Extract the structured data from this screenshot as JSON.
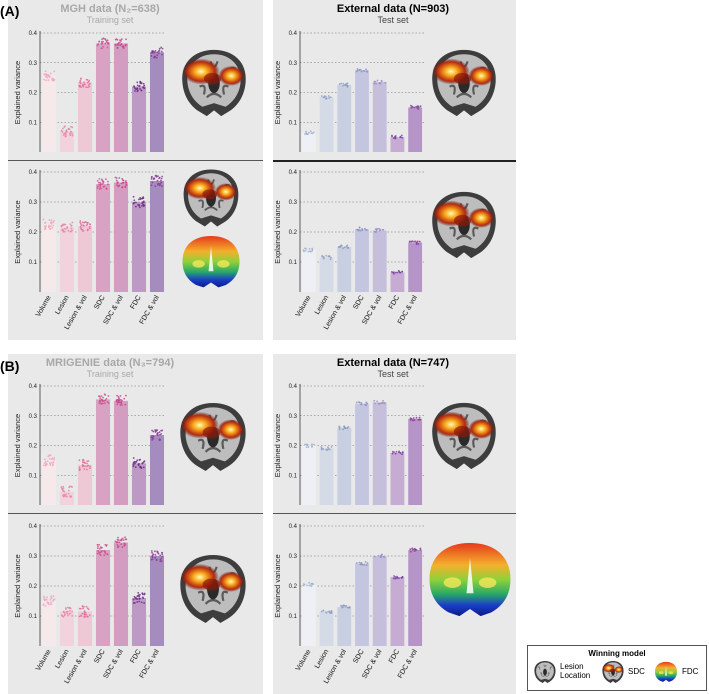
{
  "panel_labels": {
    "A": "(A)",
    "B": "(B)"
  },
  "headers": {
    "A_left": {
      "title": "MGH data (N₂=638)",
      "subtitle": "Training set"
    },
    "A_right": {
      "title": "External data (N=903)",
      "subtitle": "Test set"
    },
    "B_left": {
      "title": "MRIGENIE data (N₃=794)",
      "subtitle": "Training set"
    },
    "B_right": {
      "title": "External data (N=747)",
      "subtitle": "Test set"
    }
  },
  "legend": {
    "title": "Winning model",
    "items": [
      {
        "label": "Lesion Location",
        "icon": "lesion-brain-icon"
      },
      {
        "label": "SDC",
        "icon": "sdc-brain-icon"
      },
      {
        "label": "FDC",
        "icon": "fdc-brain-icon"
      }
    ]
  },
  "colors": {
    "bars": [
      "#f6e9ec",
      "#f2d2dc",
      "#efc8d6",
      "#d9a2c2",
      "#d29dc1",
      "#be99c5",
      "#a58cbf"
    ],
    "bars_test": [
      "#eef0f5",
      "#d4dbe7",
      "#c7cfe0",
      "#c3c6de",
      "#c6bfdc",
      "#c6abd3",
      "#b595c6"
    ],
    "dots_train": [
      "#f0a6bd",
      "#e685a6",
      "#dd6f98",
      "#cf4f8d",
      "#c6468b",
      "#6b2a82",
      "#8a3a95"
    ],
    "dots_test": [
      "#9fb0cc",
      "#8fa0c4",
      "#8a9ac0",
      "#8f93c4",
      "#9b90c4",
      "#7a3ea3",
      "#8a3a9e"
    ],
    "panel_gray": "#e9e9e9"
  },
  "chart_data": [
    {
      "id": "A1",
      "type": "bar",
      "ylabel": "Explained variance",
      "ylim": [
        0,
        0.4
      ],
      "yticks": [
        "0.1",
        "0.2",
        "0.3",
        "0.4"
      ],
      "grid": "dotted",
      "categories": [
        "Volume",
        "Lesion",
        "Lesion & vol",
        "SDC",
        "SDC & vol",
        "FDC",
        "FDC & vol"
      ],
      "values": [
        0.255,
        0.07,
        0.235,
        0.365,
        0.365,
        0.22,
        0.335
      ],
      "series": "train"
    },
    {
      "id": "A2",
      "type": "bar",
      "ylabel": "Explained variance",
      "ylim": [
        0,
        0.4
      ],
      "yticks": [
        "0.1",
        "0.2",
        "0.3",
        "0.4"
      ],
      "grid": "dotted",
      "categories": [
        "Volume",
        "Lesion",
        "Lesion & vol",
        "SDC",
        "SDC & vol",
        "FDC",
        "FDC & vol"
      ],
      "values": [
        0.065,
        0.185,
        0.225,
        0.275,
        0.235,
        0.05,
        0.15
      ],
      "series": "test"
    },
    {
      "id": "A3",
      "type": "bar",
      "ylabel": "Explained variance",
      "ylim": [
        0,
        0.4
      ],
      "yticks": [
        "0.1",
        "0.2",
        "0.3",
        "0.4"
      ],
      "grid": "dotted",
      "categories": [
        "Volume",
        "Lesion",
        "Lesion & vol",
        "SDC",
        "SDC & vol",
        "FDC",
        "FDC & vol"
      ],
      "values": [
        0.225,
        0.215,
        0.22,
        0.36,
        0.365,
        0.3,
        0.37
      ],
      "series": "train"
    },
    {
      "id": "A4",
      "type": "bar",
      "ylabel": "Explained variance",
      "ylim": [
        0,
        0.4
      ],
      "yticks": [
        "0.1",
        "0.2",
        "0.3",
        "0.4"
      ],
      "grid": "dotted",
      "categories": [
        "Volume",
        "Lesion",
        "Lesion & vol",
        "SDC",
        "SDC & vol",
        "FDC",
        "FDC & vol"
      ],
      "values": [
        0.14,
        0.115,
        0.15,
        0.21,
        0.205,
        0.065,
        0.165
      ],
      "series": "test"
    },
    {
      "id": "B1",
      "type": "bar",
      "ylabel": "Explained variance",
      "ylim": [
        0,
        0.4
      ],
      "yticks": [
        "0.1",
        "0.2",
        "0.3",
        "0.4"
      ],
      "grid": "dotted",
      "categories": [
        "Volume",
        "Lesion",
        "Lesion & vol",
        "SDC",
        "SDC & vol",
        "FDC",
        "FDC & vol"
      ],
      "values": [
        0.15,
        0.045,
        0.135,
        0.355,
        0.35,
        0.14,
        0.235
      ],
      "series": "train"
    },
    {
      "id": "B2",
      "type": "bar",
      "ylabel": "Explained variance",
      "ylim": [
        0,
        0.4
      ],
      "yticks": [
        "0.1",
        "0.2",
        "0.3",
        "0.4"
      ],
      "grid": "dotted",
      "categories": [
        "Volume",
        "Lesion",
        "Lesion & vol",
        "SDC",
        "SDC & vol",
        "FDC",
        "FDC & vol"
      ],
      "values": [
        0.2,
        0.19,
        0.26,
        0.34,
        0.345,
        0.175,
        0.29
      ],
      "series": "test"
    },
    {
      "id": "B3",
      "type": "bar",
      "ylabel": "Explained variance",
      "ylim": [
        0,
        0.4
      ],
      "yticks": [
        "0.1",
        "0.2",
        "0.3",
        "0.4"
      ],
      "grid": "dotted",
      "categories": [
        "Volume",
        "Lesion",
        "Lesion & vol",
        "SDC",
        "SDC & vol",
        "FDC",
        "FDC & vol"
      ],
      "values": [
        0.15,
        0.115,
        0.115,
        0.32,
        0.345,
        0.16,
        0.3
      ],
      "series": "train"
    },
    {
      "id": "B4",
      "type": "bar",
      "ylabel": "Explained variance",
      "ylim": [
        0,
        0.4
      ],
      "yticks": [
        "0.1",
        "0.2",
        "0.3",
        "0.4"
      ],
      "grid": "dotted",
      "categories": [
        "Volume",
        "Lesion",
        "Lesion & vol",
        "SDC",
        "SDC & vol",
        "FDC",
        "FDC & vol"
      ],
      "values": [
        0.205,
        0.115,
        0.13,
        0.275,
        0.3,
        0.23,
        0.32
      ],
      "series": "test"
    }
  ]
}
